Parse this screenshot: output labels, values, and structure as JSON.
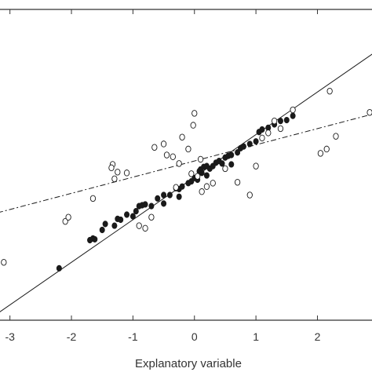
{
  "chart_data": {
    "type": "scatter",
    "title": "",
    "xlabel": "Explanatory variable",
    "ylabel": "",
    "xlim": [
      -3.2,
      2.9
    ],
    "ylim": [
      -1.3,
      2.35
    ],
    "x_ticks": [
      -3,
      -2,
      -1,
      0,
      1,
      2
    ],
    "x_tick_labels": [
      "-3",
      "-2",
      "-1",
      "0",
      "1",
      "2"
    ],
    "grid": false,
    "legend": "none",
    "colors": {
      "axis": "#333333",
      "marks": "#1a1a1a",
      "background": "#ffffff"
    },
    "series": [
      {
        "marker": "filled",
        "points": [
          [
            -2.2,
            -0.69
          ],
          [
            -1.7,
            -0.36
          ],
          [
            -1.65,
            -0.34
          ],
          [
            -1.62,
            -0.35
          ],
          [
            -1.5,
            -0.24
          ],
          [
            -1.45,
            -0.17
          ],
          [
            -1.3,
            -0.19
          ],
          [
            -1.25,
            -0.11
          ],
          [
            -1.2,
            -0.12
          ],
          [
            -1.1,
            -0.06
          ],
          [
            -1.0,
            -0.08
          ],
          [
            -0.95,
            -0.02
          ],
          [
            -0.9,
            0.04
          ],
          [
            -0.85,
            0.05
          ],
          [
            -0.8,
            0.06
          ],
          [
            -0.7,
            0.04
          ],
          [
            -0.6,
            0.13
          ],
          [
            -0.5,
            0.17
          ],
          [
            -0.4,
            0.17
          ],
          [
            -0.3,
            0.25
          ],
          [
            -0.25,
            0.24
          ],
          [
            -0.2,
            0.27
          ],
          [
            -0.1,
            0.31
          ],
          [
            -0.05,
            0.33
          ],
          [
            0.0,
            0.37
          ],
          [
            0.05,
            0.35
          ],
          [
            0.08,
            0.45
          ],
          [
            0.1,
            0.47
          ],
          [
            0.12,
            0.43
          ],
          [
            0.15,
            0.5
          ],
          [
            0.2,
            0.51
          ],
          [
            0.25,
            0.48
          ],
          [
            0.3,
            0.51
          ],
          [
            0.35,
            0.55
          ],
          [
            0.4,
            0.57
          ],
          [
            0.45,
            0.54
          ],
          [
            0.5,
            0.61
          ],
          [
            0.55,
            0.63
          ],
          [
            0.6,
            0.64
          ],
          [
            0.7,
            0.67
          ],
          [
            0.75,
            0.72
          ],
          [
            0.8,
            0.74
          ],
          [
            0.9,
            0.77
          ],
          [
            1.0,
            0.8
          ],
          [
            1.05,
            0.91
          ],
          [
            1.1,
            0.94
          ],
          [
            1.2,
            0.96
          ],
          [
            1.3,
            1.0
          ],
          [
            1.4,
            1.04
          ],
          [
            1.5,
            1.05
          ],
          [
            1.6,
            1.1
          ],
          [
            -0.5,
            0.07
          ],
          [
            -0.25,
            0.15
          ],
          [
            0.2,
            0.4
          ],
          [
            0.6,
            0.53
          ]
        ]
      },
      {
        "marker": "open",
        "points": [
          [
            -3.1,
            -0.62
          ],
          [
            -2.1,
            -0.14
          ],
          [
            -2.05,
            -0.09
          ],
          [
            -1.65,
            0.13
          ],
          [
            -1.3,
            0.36
          ],
          [
            -1.33,
            0.53
          ],
          [
            -1.35,
            0.49
          ],
          [
            -1.25,
            0.44
          ],
          [
            -1.1,
            0.43
          ],
          [
            -0.9,
            -0.19
          ],
          [
            -0.8,
            -0.22
          ],
          [
            -0.7,
            -0.09
          ],
          [
            -0.65,
            0.73
          ],
          [
            -0.5,
            0.77
          ],
          [
            -0.45,
            0.64
          ],
          [
            -0.35,
            0.62
          ],
          [
            -0.3,
            0.26
          ],
          [
            -0.25,
            0.54
          ],
          [
            -0.2,
            0.85
          ],
          [
            -0.1,
            0.71
          ],
          [
            -0.05,
            0.42
          ],
          [
            0.0,
            1.13
          ],
          [
            -0.02,
            0.99
          ],
          [
            0.05,
            0.39
          ],
          [
            0.1,
            0.59
          ],
          [
            0.12,
            0.21
          ],
          [
            0.2,
            0.27
          ],
          [
            0.3,
            0.31
          ],
          [
            0.5,
            0.48
          ],
          [
            0.7,
            0.32
          ],
          [
            0.9,
            0.17
          ],
          [
            1.0,
            0.51
          ],
          [
            1.1,
            0.84
          ],
          [
            1.2,
            0.9
          ],
          [
            1.3,
            1.04
          ],
          [
            1.4,
            0.95
          ],
          [
            1.6,
            1.17
          ],
          [
            2.05,
            0.66
          ],
          [
            2.15,
            0.71
          ],
          [
            2.3,
            0.86
          ],
          [
            2.2,
            1.39
          ],
          [
            2.85,
            1.14
          ]
        ]
      }
    ],
    "fit_lines": [
      {
        "style": "solid",
        "slope": 0.5,
        "intercept": 0.38
      },
      {
        "style": "dash-dot",
        "slope": 0.19,
        "intercept": 0.57
      }
    ]
  }
}
